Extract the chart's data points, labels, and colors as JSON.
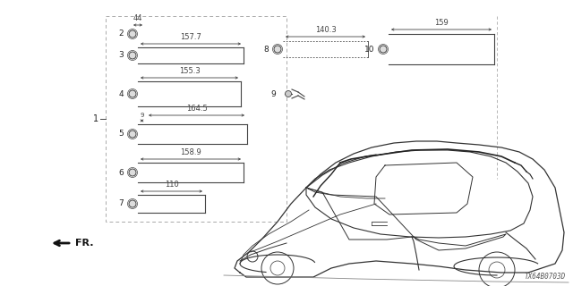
{
  "bg_color": "#ffffff",
  "line_color": "#444444",
  "text_color": "#222222",
  "diagram_code": "TX64B0703D",
  "fig_w": 6.4,
  "fig_h": 3.2,
  "dpi": 100
}
